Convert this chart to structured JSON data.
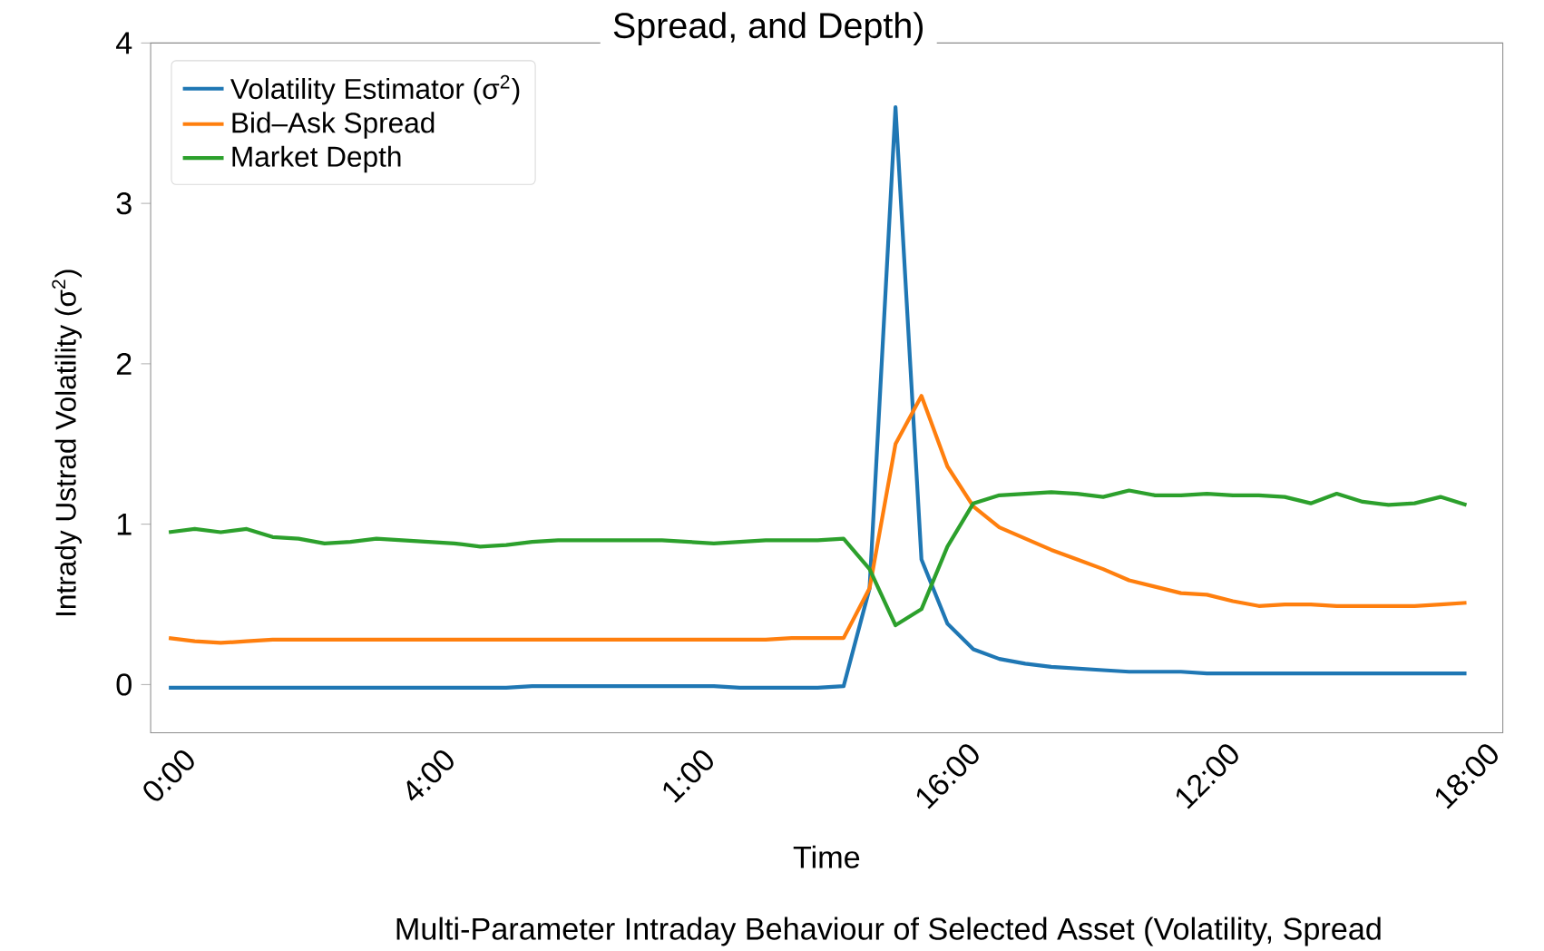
{
  "chart_data": {
    "type": "line",
    "title": "Spread, and Depth)",
    "xlabel": "Time",
    "ylabel": "Intrady Ustrad Volatility (σ$^{2}$)",
    "annotations": [
      "Multi-Parameter Intraday Behaviour of Selected Asset (Volatility, Spread"
    ],
    "categories": [
      "0:00",
      null,
      null,
      null,
      null,
      null,
      null,
      null,
      null,
      null,
      "4:00",
      null,
      null,
      null,
      null,
      null,
      null,
      null,
      null,
      null,
      "1:00",
      null,
      null,
      null,
      null,
      null,
      null,
      null,
      null,
      null,
      "16:00",
      null,
      null,
      null,
      null,
      null,
      null,
      null,
      null,
      null,
      "12:00",
      null,
      null,
      null,
      null,
      null,
      null,
      null,
      null,
      null,
      "18:00"
    ],
    "ylim": [
      -0.3,
      4
    ],
    "yticks": [
      0,
      1,
      2,
      3,
      4
    ],
    "legend": "top left",
    "series": [
      {
        "name": "Volatility Estimator (σ$^{2}$)",
        "color": "#1f77b4",
        "values": [
          -0.02,
          -0.02,
          -0.02,
          -0.02,
          -0.02,
          -0.02,
          -0.02,
          -0.02,
          -0.02,
          -0.02,
          -0.02,
          -0.02,
          -0.02,
          -0.02,
          -0.01,
          -0.01,
          -0.01,
          -0.01,
          -0.01,
          -0.01,
          -0.01,
          -0.01,
          -0.02,
          -0.02,
          -0.02,
          -0.02,
          -0.01,
          0.6,
          3.6,
          0.78,
          0.38,
          0.22,
          0.16,
          0.13,
          0.11,
          0.1,
          0.09,
          0.08,
          0.08,
          0.08,
          0.07,
          0.07,
          0.07,
          0.07,
          0.07,
          0.07,
          0.07,
          0.07,
          0.07,
          0.07,
          0.07
        ]
      },
      {
        "name": "Bid–Ask Spread",
        "color": "#ff7f0e",
        "values": [
          0.29,
          0.27,
          0.26,
          0.27,
          0.28,
          0.28,
          0.28,
          0.28,
          0.28,
          0.28,
          0.28,
          0.28,
          0.28,
          0.28,
          0.28,
          0.28,
          0.28,
          0.28,
          0.28,
          0.28,
          0.28,
          0.28,
          0.28,
          0.28,
          0.29,
          0.29,
          0.29,
          0.6,
          1.5,
          1.8,
          1.36,
          1.11,
          0.98,
          0.91,
          0.84,
          0.78,
          0.72,
          0.65,
          0.61,
          0.57,
          0.56,
          0.52,
          0.49,
          0.5,
          0.5,
          0.49,
          0.49,
          0.49,
          0.49,
          0.5,
          0.51
        ]
      },
      {
        "name": "Market Depth",
        "color": "#2ca02c",
        "values": [
          0.95,
          0.97,
          0.95,
          0.97,
          0.92,
          0.91,
          0.88,
          0.89,
          0.91,
          0.9,
          0.89,
          0.88,
          0.86,
          0.87,
          0.89,
          0.9,
          0.9,
          0.9,
          0.9,
          0.9,
          0.89,
          0.88,
          0.89,
          0.9,
          0.9,
          0.9,
          0.91,
          0.72,
          0.37,
          0.47,
          0.86,
          1.13,
          1.18,
          1.19,
          1.2,
          1.19,
          1.17,
          1.21,
          1.18,
          1.18,
          1.19,
          1.18,
          1.18,
          1.17,
          1.13,
          1.19,
          1.14,
          1.12,
          1.13,
          1.17,
          1.12
        ]
      }
    ]
  }
}
